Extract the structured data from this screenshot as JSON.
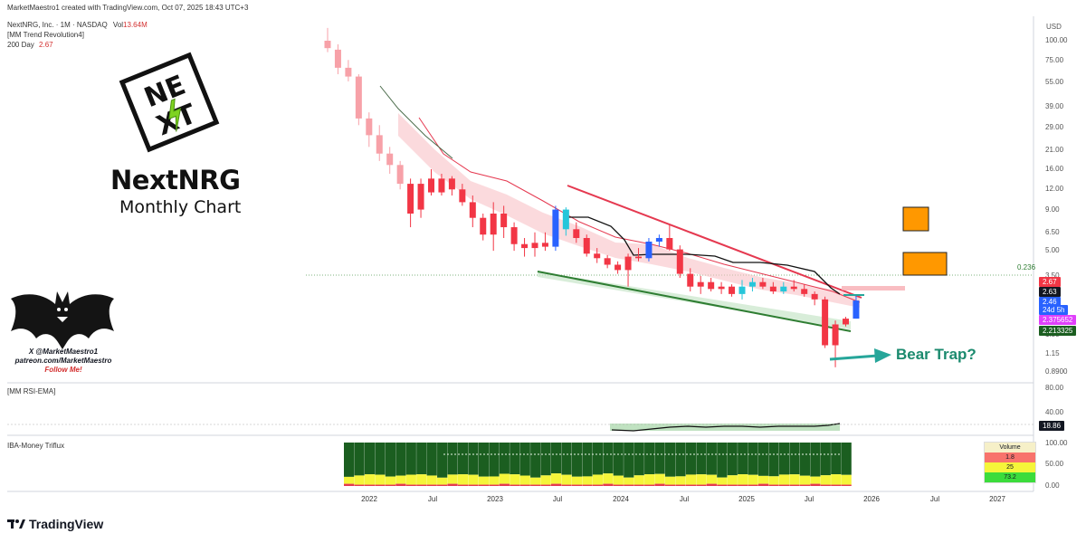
{
  "header": {
    "created": "MarketMaestro1 created with TradingView.com, Oct 07, 2025 18:43 UTC+3",
    "symbol": "NextNRG, Inc. · 1M · NASDAQ",
    "vol_label": "Vol",
    "vol_value": "13.64M",
    "indicator1": "[MM Trend Revolution4]",
    "ma_label": "200 Day",
    "ma_value": "2.67"
  },
  "branding": {
    "title": "NextNRG",
    "subtitle": "Monthly Chart",
    "logo_top": "NE",
    "logo_bottom": "XT",
    "credit_line1": "X @MarketMaestro1",
    "credit_line2": "patreon.com/MarketMaestro",
    "credit_line3": "Follow Me!"
  },
  "annotation": {
    "text": "Bear Trap?"
  },
  "fib_label": "0.236",
  "currency": "USD",
  "watermark": "TradingView",
  "chart_data": {
    "type": "candlestick",
    "scale": "log",
    "y_ticks": [
      "100.00",
      "75.00",
      "55.00",
      "39.00",
      "29.00",
      "21.00",
      "16.00",
      "12.00",
      "9.00",
      "6.50",
      "5.00",
      "3.50",
      "1.50",
      "1.15",
      "0.8900"
    ],
    "x_ticks": [
      "2022",
      "Jul",
      "2023",
      "Jul",
      "2024",
      "Jul",
      "2025",
      "Jul",
      "2026",
      "Jul",
      "2027"
    ],
    "price_tags": [
      {
        "value": "2.67",
        "color": "#f23645"
      },
      {
        "value": "2.63",
        "color": "#131722"
      },
      {
        "value": "2.46",
        "color": "#2962ff"
      },
      {
        "value": "24d 5h",
        "color": "#2962ff"
      },
      {
        "value": "2.375652",
        "color": "#e040fb"
      },
      {
        "value": "2.213325",
        "color": "#1b5e20"
      }
    ],
    "candles": [
      {
        "o": 100,
        "h": 120,
        "l": 85,
        "c": 90,
        "col": "bear"
      },
      {
        "o": 88,
        "h": 95,
        "l": 62,
        "c": 68,
        "col": "bear"
      },
      {
        "o": 68,
        "h": 76,
        "l": 56,
        "c": 60,
        "col": "bear"
      },
      {
        "o": 60,
        "h": 62,
        "l": 30,
        "c": 33,
        "col": "bear"
      },
      {
        "o": 33,
        "h": 36,
        "l": 22,
        "c": 26,
        "col": "bear"
      },
      {
        "o": 26,
        "h": 30,
        "l": 18,
        "c": 20,
        "col": "bear"
      },
      {
        "o": 20,
        "h": 22,
        "l": 15,
        "c": 17,
        "col": "bear"
      },
      {
        "o": 17,
        "h": 18,
        "l": 12,
        "c": 13,
        "col": "bear"
      },
      {
        "o": 13,
        "h": 14,
        "l": 7,
        "c": 8.5,
        "col": "red"
      },
      {
        "o": 9,
        "h": 14,
        "l": 8,
        "c": 13,
        "col": "red"
      },
      {
        "o": 14,
        "h": 16,
        "l": 11,
        "c": 11.5,
        "col": "red"
      },
      {
        "o": 11.5,
        "h": 15,
        "l": 11,
        "c": 14,
        "col": "red"
      },
      {
        "o": 14,
        "h": 14.5,
        "l": 11,
        "c": 12,
        "col": "red"
      },
      {
        "o": 12,
        "h": 13,
        "l": 9.5,
        "c": 10,
        "col": "red"
      },
      {
        "o": 10,
        "h": 11,
        "l": 7,
        "c": 8,
        "col": "red"
      },
      {
        "o": 8,
        "h": 8.5,
        "l": 5.8,
        "c": 6.3,
        "col": "red"
      },
      {
        "o": 6.3,
        "h": 10,
        "l": 5,
        "c": 8.5,
        "col": "red"
      },
      {
        "o": 8.5,
        "h": 9.5,
        "l": 6,
        "c": 7,
        "col": "red"
      },
      {
        "o": 7,
        "h": 7.5,
        "l": 5,
        "c": 5.5,
        "col": "red"
      },
      {
        "o": 5.5,
        "h": 6,
        "l": 4.6,
        "c": 5.2,
        "col": "red"
      },
      {
        "o": 5.2,
        "h": 6.5,
        "l": 4.6,
        "c": 5.6,
        "col": "red"
      },
      {
        "o": 5.6,
        "h": 6.5,
        "l": 5.0,
        "c": 5.3,
        "col": "red"
      },
      {
        "o": 5.3,
        "h": 9.5,
        "l": 5.0,
        "c": 9.0,
        "col": "blue"
      },
      {
        "o": 9.0,
        "h": 9.3,
        "l": 6.2,
        "c": 6.8,
        "col": "teal"
      },
      {
        "o": 6.8,
        "h": 7.5,
        "l": 5.6,
        "c": 6.0,
        "col": "red"
      },
      {
        "o": 6.0,
        "h": 6.3,
        "l": 4.6,
        "c": 4.8,
        "col": "red"
      },
      {
        "o": 4.8,
        "h": 5.2,
        "l": 4.2,
        "c": 4.5,
        "col": "red"
      },
      {
        "o": 4.5,
        "h": 4.7,
        "l": 3.9,
        "c": 4.1,
        "col": "red"
      },
      {
        "o": 4.1,
        "h": 4.3,
        "l": 3.6,
        "c": 3.8,
        "col": "red"
      },
      {
        "o": 3.8,
        "h": 4.8,
        "l": 3.0,
        "c": 4.6,
        "col": "red"
      },
      {
        "o": 4.6,
        "h": 5.2,
        "l": 4.3,
        "c": 4.5,
        "col": "red"
      },
      {
        "o": 4.5,
        "h": 6.0,
        "l": 4.3,
        "c": 5.7,
        "col": "blue"
      },
      {
        "o": 5.7,
        "h": 6.3,
        "l": 5.3,
        "c": 6.0,
        "col": "blue"
      },
      {
        "o": 6.0,
        "h": 7.2,
        "l": 5.0,
        "c": 5.1,
        "col": "red"
      },
      {
        "o": 5.1,
        "h": 5.4,
        "l": 3.4,
        "c": 3.6,
        "col": "red"
      },
      {
        "o": 3.6,
        "h": 3.9,
        "l": 2.8,
        "c": 3.0,
        "col": "red"
      },
      {
        "o": 3.0,
        "h": 3.5,
        "l": 2.7,
        "c": 3.2,
        "col": "red"
      },
      {
        "o": 3.2,
        "h": 3.4,
        "l": 2.8,
        "c": 2.9,
        "col": "red"
      },
      {
        "o": 2.9,
        "h": 3.2,
        "l": 2.7,
        "c": 3.0,
        "col": "red"
      },
      {
        "o": 3.0,
        "h": 3.1,
        "l": 2.6,
        "c": 2.7,
        "col": "red"
      },
      {
        "o": 2.7,
        "h": 3.3,
        "l": 2.5,
        "c": 3.0,
        "col": "teal"
      },
      {
        "o": 3.0,
        "h": 3.4,
        "l": 2.8,
        "c": 3.2,
        "col": "teal"
      },
      {
        "o": 3.2,
        "h": 3.4,
        "l": 2.9,
        "c": 3.0,
        "col": "red"
      },
      {
        "o": 3.0,
        "h": 3.2,
        "l": 2.7,
        "c": 2.8,
        "col": "red"
      },
      {
        "o": 2.8,
        "h": 3.2,
        "l": 2.7,
        "c": 3.0,
        "col": "teal"
      },
      {
        "o": 3.0,
        "h": 3.3,
        "l": 2.8,
        "c": 2.9,
        "col": "red"
      },
      {
        "o": 2.9,
        "h": 3.1,
        "l": 2.6,
        "c": 2.7,
        "col": "red"
      },
      {
        "o": 2.7,
        "h": 2.8,
        "l": 2.3,
        "c": 2.5,
        "col": "red"
      },
      {
        "o": 2.5,
        "h": 2.6,
        "l": 1.25,
        "c": 1.3,
        "col": "red"
      },
      {
        "o": 1.3,
        "h": 1.85,
        "l": 0.95,
        "c": 1.75,
        "col": "red"
      },
      {
        "o": 1.75,
        "h": 1.95,
        "l": 1.7,
        "c": 1.9,
        "col": "red"
      },
      {
        "o": 1.9,
        "h": 2.63,
        "l": 1.9,
        "c": 2.46,
        "col": "blue"
      }
    ],
    "rsi": {
      "title": "[MM RSI-EMA]",
      "y_ticks": [
        "80.00",
        "40.00",
        "0.00"
      ],
      "last": "18.86"
    },
    "triflux": {
      "title": "IBA-Money Triflux",
      "y_ticks": [
        "100.00",
        "50.00",
        "0.00"
      ],
      "table": {
        "header": "Volume",
        "rows": [
          {
            "value": "1.8",
            "color": "#f8736c"
          },
          {
            "value": "25",
            "color": "#f5f53a"
          },
          {
            "value": "73.2",
            "color": "#3cdc3c"
          }
        ]
      }
    },
    "targets": [
      {
        "low": 7.8,
        "high": 10.2
      },
      {
        "low": 3.5,
        "high": 5.1
      }
    ],
    "support_level": 3.5
  },
  "colors": {
    "bull": "#2962ff",
    "teal": "#26c6da",
    "bear": "#f23645",
    "light_bear": "#f7a1a8"
  }
}
